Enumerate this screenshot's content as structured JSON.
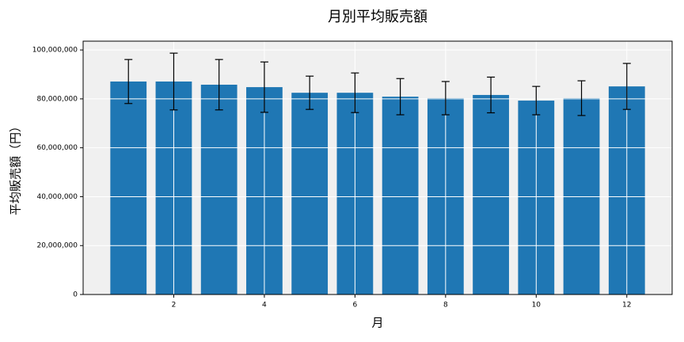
{
  "chart_data": {
    "type": "bar",
    "title": "月別平均販売額",
    "x_label": "月",
    "y_label": "平均販売額（円）",
    "x": [
      1,
      2,
      3,
      4,
      5,
      6,
      7,
      8,
      9,
      10,
      11,
      12
    ],
    "values": [
      87100000,
      87100000,
      85800000,
      84800000,
      82500000,
      82500000,
      80900000,
      80300000,
      81600000,
      79300000,
      80300000,
      85100000
    ],
    "errors": [
      9000000,
      11600000,
      10300000,
      10300000,
      6800000,
      8100000,
      7400000,
      6800000,
      7300000,
      5800000,
      7100000,
      9400000
    ],
    "color": "#1f77b4",
    "error_color": "#000000",
    "background": "#f0f0f0",
    "grid": true,
    "xlim": [
      0,
      13
    ],
    "xticks": [
      2,
      4,
      6,
      8,
      10,
      12
    ],
    "ylim": [
      0,
      103600000
    ],
    "yticks": [
      0,
      {
        "value": 20000000,
        "label": "20,000,000"
      },
      {
        "value": 40000000,
        "label": "40,000,000"
      },
      {
        "value": 60000000,
        "label": "60,000,000"
      },
      {
        "value": 80000000,
        "label": "80,000,000"
      },
      {
        "value": 100000000,
        "label": "100,000,000"
      }
    ]
  }
}
